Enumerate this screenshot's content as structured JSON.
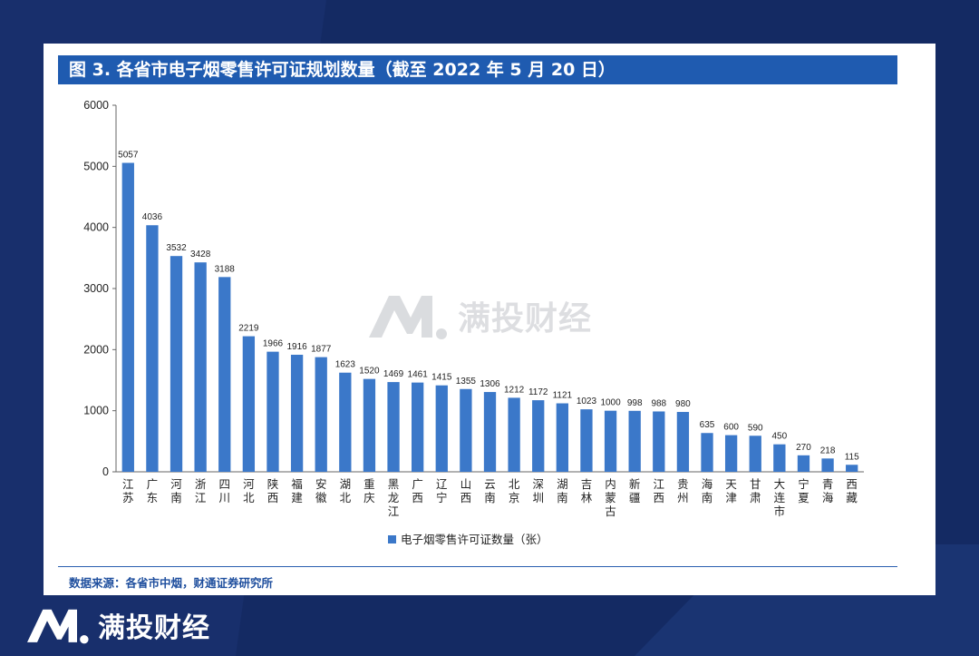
{
  "brand": {
    "name": "满投财经",
    "logo_icon": "m-logo-icon"
  },
  "colors": {
    "bar": "#3b78c9",
    "title_bg": "#1f5bb0",
    "page_bg": "#142a63"
  },
  "source": "数据来源：各省市中烟，财通证券研究所",
  "chart_data": {
    "type": "bar",
    "title": "图 3. 各省市电子烟零售许可证规划数量（截至 2022 年 5 月 20 日）",
    "categories": [
      "江苏",
      "广东",
      "河南",
      "浙江",
      "四川",
      "河北",
      "陕西",
      "福建",
      "安徽",
      "湖北",
      "重庆",
      "黑龙江",
      "广西",
      "辽宁",
      "山西",
      "云南",
      "北京",
      "深圳",
      "湖南",
      "吉林",
      "内蒙古",
      "新疆",
      "江西",
      "贵州",
      "海南",
      "天津",
      "甘肃",
      "大连市",
      "宁夏",
      "青海",
      "西藏"
    ],
    "series": [
      {
        "name": "电子烟零售许可证数量（张）",
        "values": [
          5057,
          4036,
          3532,
          3428,
          3188,
          2219,
          1966,
          1916,
          1877,
          1623,
          1520,
          1469,
          1461,
          1415,
          1355,
          1306,
          1212,
          1172,
          1121,
          1023,
          1000,
          998,
          988,
          980,
          635,
          600,
          590,
          450,
          270,
          218,
          115
        ]
      }
    ],
    "yticks": [
      0,
      1000,
      2000,
      3000,
      4000,
      5000,
      6000
    ],
    "ylim": [
      0,
      6000
    ],
    "xlabel": "",
    "ylabel": "",
    "legend_position": "bottom-center",
    "grid": false
  }
}
